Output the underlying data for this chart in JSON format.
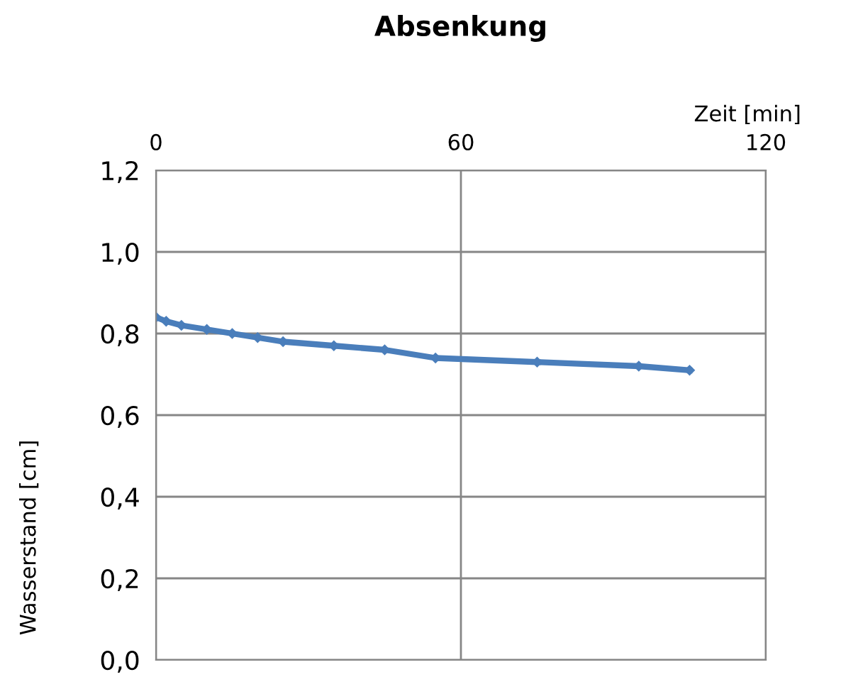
{
  "chart_data": {
    "type": "line",
    "title": "Absenkung",
    "xlabel": "Zeit [min]",
    "ylabel": "Wasserstand [cm]",
    "x": [
      0,
      2,
      5,
      10,
      15,
      20,
      25,
      35,
      45,
      55,
      75,
      95,
      105
    ],
    "series": [
      {
        "color": "#4a7ebb",
        "values": [
          0.84,
          0.83,
          0.82,
          0.81,
          0.8,
          0.79,
          0.78,
          0.77,
          0.76,
          0.74,
          0.73,
          0.72,
          0.71
        ]
      }
    ],
    "xlim": [
      0,
      120
    ],
    "xticks": [
      0,
      60,
      120
    ],
    "ylim": [
      0,
      1.2
    ],
    "yticks": [
      {
        "value": 0,
        "label": "0,0"
      },
      {
        "value": 0.2,
        "label": "0,2"
      },
      {
        "value": 0.4,
        "label": "0,4"
      },
      {
        "value": 0.6,
        "label": "0,6"
      },
      {
        "value": 0.8,
        "label": "0,8"
      },
      {
        "value": 1.0,
        "label": "1,0"
      },
      {
        "value": 1.2,
        "label": "1,2"
      }
    ],
    "grid": true,
    "marker": "diamond",
    "line_style": "solid"
  }
}
